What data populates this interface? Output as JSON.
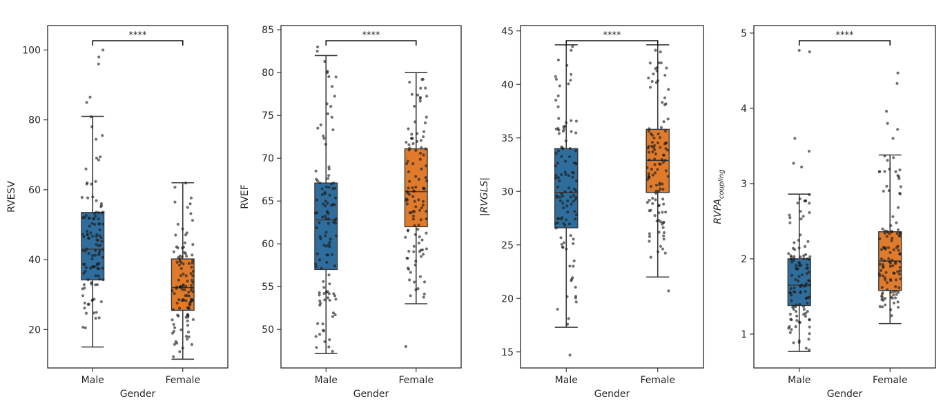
{
  "figure": {
    "x_label": "Gender",
    "significance_label": "****",
    "group_colors": {
      "Male": "#2f6e9c",
      "Female": "#e07b2c"
    }
  },
  "chart_data": [
    {
      "type": "box",
      "ylabel": "RVESV",
      "ylabel_style": "plain",
      "xlabel": "Gender",
      "categories": [
        "Male",
        "Female"
      ],
      "ylim": [
        9,
        107
      ],
      "yticks": [
        20,
        40,
        60,
        80,
        100
      ],
      "boxes": [
        {
          "group": "Male",
          "whisker_low": 15,
          "q1": 34.2,
          "median": 43,
          "q3": 53.5,
          "whisker_high": 81
        },
        {
          "group": "Female",
          "whisker_low": 11.5,
          "q1": 25.5,
          "median": 32,
          "q3": 40.2,
          "whisker_high": 62
        }
      ],
      "outliers": [
        {
          "group": "Male",
          "values": [
            100,
            98,
            96,
            86.5,
            85
          ]
        },
        {
          "group": "Female",
          "values": []
        }
      ],
      "significance": "****"
    },
    {
      "type": "box",
      "ylabel": "RVEF",
      "ylabel_style": "plain",
      "xlabel": "Gender",
      "categories": [
        "Male",
        "Female"
      ],
      "ylim": [
        45.5,
        85.5
      ],
      "yticks": [
        50,
        55,
        60,
        65,
        70,
        75,
        80,
        85
      ],
      "boxes": [
        {
          "group": "Male",
          "whisker_low": 47.2,
          "q1": 57,
          "median": 62.8,
          "q3": 67.1,
          "whisker_high": 82
        },
        {
          "group": "Female",
          "whisker_low": 53,
          "q1": 62,
          "median": 66.1,
          "q3": 71.1,
          "whisker_high": 80
        }
      ],
      "outliers": [
        {
          "group": "Male",
          "values": [
            83,
            82.5
          ]
        },
        {
          "group": "Female",
          "values": [
            48
          ]
        }
      ],
      "significance": "****"
    },
    {
      "type": "box",
      "ylabel": "|RVGLS|",
      "ylabel_style": "italic",
      "xlabel": "Gender",
      "categories": [
        "Male",
        "Female"
      ],
      "ylim": [
        13.5,
        45.5
      ],
      "yticks": [
        15,
        20,
        25,
        30,
        35,
        40,
        45
      ],
      "boxes": [
        {
          "group": "Male",
          "whisker_low": 17.3,
          "q1": 26.6,
          "median": 29.9,
          "q3": 34,
          "whisker_high": 43.7
        },
        {
          "group": "Female",
          "whisker_low": 22,
          "q1": 29.9,
          "median": 32.9,
          "q3": 35.8,
          "whisker_high": 43.7
        }
      ],
      "outliers": [
        {
          "group": "Male",
          "values": [
            14.7
          ]
        },
        {
          "group": "Female",
          "values": [
            20.7
          ]
        }
      ],
      "significance": "****"
    },
    {
      "type": "box",
      "ylabel": "RVPA",
      "ylabel_subscript": "coupling",
      "ylabel_style": "italic",
      "xlabel": "Gender",
      "categories": [
        "Male",
        "Female"
      ],
      "ylim": [
        0.55,
        5.1
      ],
      "yticks": [
        1,
        2,
        3,
        4,
        5
      ],
      "boxes": [
        {
          "group": "Male",
          "whisker_low": 0.77,
          "q1": 1.38,
          "median": 1.65,
          "q3": 2.0,
          "whisker_high": 2.86
        },
        {
          "group": "Female",
          "whisker_low": 1.14,
          "q1": 1.58,
          "median": 1.97,
          "q3": 2.36,
          "whisker_high": 3.38
        }
      ],
      "outliers": [
        {
          "group": "Male",
          "values": [
            4.77,
            4.75,
            3.6,
            3.43,
            3.27,
            3.22
          ]
        },
        {
          "group": "Female",
          "values": [
            4.47,
            4.33,
            3.96,
            3.8,
            3.72,
            3.6
          ]
        }
      ],
      "significance": "****"
    }
  ]
}
